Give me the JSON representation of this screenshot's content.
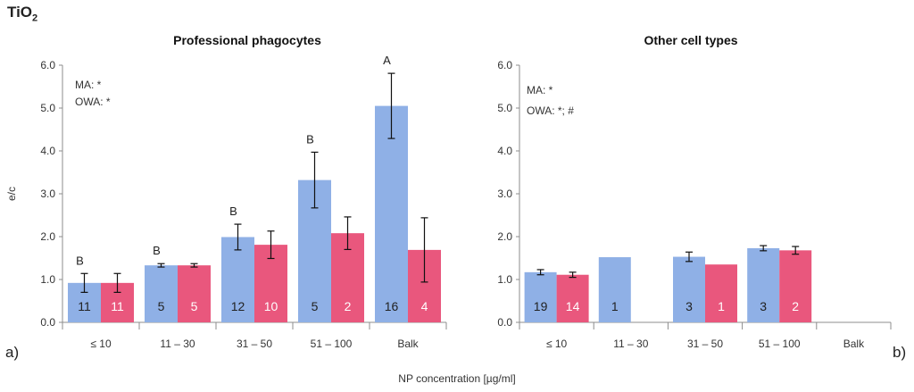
{
  "figure": {
    "title_main": "TiO",
    "title_sub": "2",
    "xlabel": "NP concentration [µg/ml]"
  },
  "colors": {
    "series_a": "#8fb0e6",
    "series_b": "#e9577d",
    "axis": "#8c8c8c",
    "grid": "none"
  },
  "chart_data": [
    {
      "type": "bar",
      "panel_label": "a)",
      "title": "Professional phagocytes",
      "ylabel": "e/c",
      "ylim": [
        0,
        6
      ],
      "yticks": [
        "0.0",
        "1.0",
        "2.0",
        "3.0",
        "4.0",
        "5.0",
        "6.0"
      ],
      "categories": [
        "≤ 10",
        "11 – 30",
        "31 – 50",
        "51 – 100",
        "Balk"
      ],
      "series": [
        {
          "values": [
            0.92,
            1.33,
            1.99,
            3.32,
            5.05
          ],
          "err": [
            0.22,
            0.04,
            0.3,
            0.65,
            0.76
          ],
          "n": [
            "11",
            "5",
            "12",
            "5",
            "16"
          ]
        },
        {
          "values": [
            0.92,
            1.33,
            1.81,
            2.08,
            1.69
          ],
          "err": [
            0.22,
            0.04,
            0.32,
            0.38,
            0.75
          ],
          "n": [
            "11",
            "5",
            "10",
            "2",
            "4"
          ]
        }
      ],
      "group_letters": [
        "B",
        "B",
        "B",
        "B",
        "A"
      ],
      "annotations": [
        "MA: *",
        "OWA: *"
      ]
    },
    {
      "type": "bar",
      "panel_label": "b)",
      "title": "Other cell types",
      "ylim": [
        0,
        6
      ],
      "yticks": [
        "0.0",
        "1.0",
        "2.0",
        "3.0",
        "4.0",
        "5.0",
        "6.0"
      ],
      "categories": [
        "≤ 10",
        "11 – 30",
        "31 – 50",
        "51 – 100",
        "Balk"
      ],
      "series": [
        {
          "values": [
            1.17,
            1.52,
            1.53,
            1.73,
            null
          ],
          "err": [
            0.06,
            null,
            0.11,
            0.06,
            null
          ],
          "n": [
            "19",
            "1",
            "3",
            "3",
            ""
          ]
        },
        {
          "values": [
            1.11,
            null,
            1.35,
            1.68,
            null
          ],
          "err": [
            0.06,
            null,
            null,
            0.09,
            null
          ],
          "n": [
            "14",
            "",
            "1",
            "2",
            ""
          ]
        }
      ],
      "annotations": [
        "MA: *",
        "OWA: *; #"
      ]
    }
  ]
}
